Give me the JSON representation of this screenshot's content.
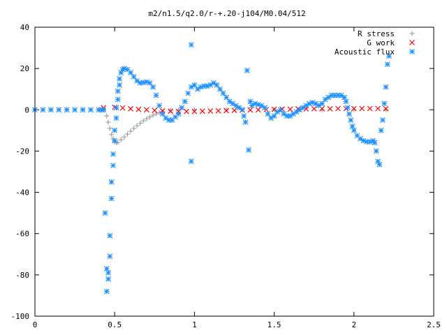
{
  "chart_data": {
    "type": "scatter",
    "title": "m2/n1.5/q2.0/r-+.20-j104/M0.04/512",
    "xlabel": "",
    "ylabel": "",
    "xlim": [
      0,
      2.5
    ],
    "ylim": [
      -100,
      40
    ],
    "x_ticks": [
      0,
      0.5,
      1,
      1.5,
      2,
      2.5
    ],
    "y_ticks": [
      -100,
      -80,
      -60,
      -40,
      -20,
      0,
      20,
      40
    ],
    "x_tick_labels": [
      "0",
      "0.5",
      "1",
      "1.5",
      "2",
      "2.5"
    ],
    "y_tick_labels": [
      "-100",
      "-80",
      "-60",
      "-40",
      "-20",
      "0",
      "20",
      "40"
    ],
    "grid": false,
    "legend_position": "top-right",
    "series": [
      {
        "name": "R stress",
        "marker": "plus",
        "color": "#a0a0a0",
        "points": [
          [
            0.0,
            0
          ],
          [
            0.1,
            0
          ],
          [
            0.2,
            0
          ],
          [
            0.3,
            0
          ],
          [
            0.4,
            0
          ],
          [
            0.43,
            0
          ],
          [
            0.45,
            -3
          ],
          [
            0.46,
            -6
          ],
          [
            0.47,
            -9
          ],
          [
            0.48,
            -12
          ],
          [
            0.49,
            -14
          ],
          [
            0.5,
            -15.5
          ],
          [
            0.51,
            -16
          ],
          [
            0.52,
            -15.8
          ],
          [
            0.54,
            -14.5
          ],
          [
            0.56,
            -13.2
          ],
          [
            0.58,
            -11.8
          ],
          [
            0.6,
            -10.4
          ],
          [
            0.62,
            -9
          ],
          [
            0.64,
            -7.7
          ],
          [
            0.66,
            -6.5
          ],
          [
            0.68,
            -5.4
          ],
          [
            0.7,
            -4.4
          ],
          [
            0.72,
            -3.5
          ],
          [
            0.74,
            -2.7
          ],
          [
            0.76,
            -2
          ],
          [
            0.78,
            -1.4
          ],
          [
            0.8,
            -0.9
          ],
          [
            0.85,
            -0.4
          ],
          [
            0.9,
            -0.1
          ],
          [
            1.0,
            0
          ],
          [
            1.2,
            0
          ],
          [
            1.5,
            0
          ],
          [
            1.8,
            0
          ],
          [
            2.0,
            0
          ],
          [
            2.2,
            0
          ]
        ]
      },
      {
        "name": "G work",
        "marker": "cross",
        "color": "#ff0000",
        "points": [
          [
            0.43,
            1
          ],
          [
            0.5,
            1.2
          ],
          [
            0.55,
            0.9
          ],
          [
            0.6,
            0.5
          ],
          [
            0.65,
            0.2
          ],
          [
            0.7,
            0
          ],
          [
            0.75,
            -0.3
          ],
          [
            0.8,
            -0.5
          ],
          [
            0.85,
            -0.7
          ],
          [
            0.9,
            -0.8
          ],
          [
            0.95,
            -0.8
          ],
          [
            1.0,
            -0.8
          ],
          [
            1.05,
            -0.7
          ],
          [
            1.1,
            -0.6
          ],
          [
            1.15,
            -0.5
          ],
          [
            1.2,
            -0.4
          ],
          [
            1.25,
            -0.3
          ],
          [
            1.3,
            -0.2
          ],
          [
            1.35,
            -0.1
          ],
          [
            1.4,
            0
          ],
          [
            1.45,
            0.1
          ],
          [
            1.5,
            0.2
          ],
          [
            1.55,
            0.3
          ],
          [
            1.6,
            0.3
          ],
          [
            1.65,
            0.4
          ],
          [
            1.7,
            0.4
          ],
          [
            1.75,
            0.5
          ],
          [
            1.8,
            0.5
          ],
          [
            1.85,
            0.5
          ],
          [
            1.9,
            0.6
          ],
          [
            1.95,
            0.6
          ],
          [
            2.0,
            0.6
          ],
          [
            2.05,
            0.6
          ],
          [
            2.1,
            0.6
          ],
          [
            2.15,
            0.6
          ],
          [
            2.2,
            0.5
          ]
        ]
      },
      {
        "name": "Acoustic flux",
        "marker": "star",
        "color": "#1e90ff",
        "points": [
          [
            0.0,
            0
          ],
          [
            0.05,
            0
          ],
          [
            0.1,
            0
          ],
          [
            0.15,
            0
          ],
          [
            0.2,
            0
          ],
          [
            0.25,
            0
          ],
          [
            0.3,
            0
          ],
          [
            0.35,
            0
          ],
          [
            0.4,
            0
          ],
          [
            0.42,
            0
          ],
          [
            0.43,
            0
          ],
          [
            0.44,
            -50
          ],
          [
            0.45,
            -77
          ],
          [
            0.45,
            -88
          ],
          [
            0.46,
            -79
          ],
          [
            0.46,
            -82
          ],
          [
            0.47,
            -71
          ],
          [
            0.47,
            -61
          ],
          [
            0.48,
            -43
          ],
          [
            0.48,
            -35
          ],
          [
            0.49,
            -27
          ],
          [
            0.49,
            -21.5
          ],
          [
            0.5,
            -15
          ],
          [
            0.5,
            -10
          ],
          [
            0.51,
            -4
          ],
          [
            0.51,
            1
          ],
          [
            0.52,
            5
          ],
          [
            0.52,
            9
          ],
          [
            0.53,
            12
          ],
          [
            0.53,
            15
          ],
          [
            0.54,
            18
          ],
          [
            0.55,
            19.5
          ],
          [
            0.56,
            20
          ],
          [
            0.58,
            19.5
          ],
          [
            0.6,
            18
          ],
          [
            0.62,
            16
          ],
          [
            0.64,
            14
          ],
          [
            0.66,
            13
          ],
          [
            0.68,
            13.2
          ],
          [
            0.7,
            13.5
          ],
          [
            0.72,
            13
          ],
          [
            0.74,
            11
          ],
          [
            0.76,
            7
          ],
          [
            0.78,
            2
          ],
          [
            0.8,
            -2
          ],
          [
            0.82,
            -4
          ],
          [
            0.84,
            -5
          ],
          [
            0.86,
            -5
          ],
          [
            0.88,
            -3.5
          ],
          [
            0.9,
            -2
          ],
          [
            0.92,
            1
          ],
          [
            0.94,
            4
          ],
          [
            0.96,
            8
          ],
          [
            0.98,
            11
          ],
          [
            0.98,
            31.5
          ],
          [
            0.98,
            -25
          ],
          [
            1.0,
            12
          ],
          [
            1.02,
            10
          ],
          [
            1.04,
            11
          ],
          [
            1.06,
            11.5
          ],
          [
            1.08,
            11.5
          ],
          [
            1.1,
            12
          ],
          [
            1.12,
            13
          ],
          [
            1.14,
            12
          ],
          [
            1.16,
            10
          ],
          [
            1.18,
            8
          ],
          [
            1.2,
            6
          ],
          [
            1.22,
            4
          ],
          [
            1.24,
            3
          ],
          [
            1.26,
            2
          ],
          [
            1.28,
            1
          ],
          [
            1.3,
            0
          ],
          [
            1.31,
            -3
          ],
          [
            1.32,
            -6
          ],
          [
            1.33,
            19
          ],
          [
            1.34,
            -19.5
          ],
          [
            1.35,
            4
          ],
          [
            1.36,
            2
          ],
          [
            1.38,
            3
          ],
          [
            1.4,
            2.5
          ],
          [
            1.42,
            2
          ],
          [
            1.44,
            1
          ],
          [
            1.46,
            -2
          ],
          [
            1.48,
            -4
          ],
          [
            1.5,
            -3
          ],
          [
            1.52,
            -1
          ],
          [
            1.54,
            0
          ],
          [
            1.56,
            -2
          ],
          [
            1.58,
            -3
          ],
          [
            1.6,
            -3
          ],
          [
            1.62,
            -2
          ],
          [
            1.64,
            -1
          ],
          [
            1.66,
            0
          ],
          [
            1.68,
            1
          ],
          [
            1.7,
            2
          ],
          [
            1.72,
            3
          ],
          [
            1.74,
            3.5
          ],
          [
            1.76,
            3
          ],
          [
            1.78,
            2
          ],
          [
            1.8,
            3
          ],
          [
            1.82,
            5
          ],
          [
            1.84,
            6
          ],
          [
            1.86,
            7
          ],
          [
            1.88,
            7
          ],
          [
            1.9,
            7
          ],
          [
            1.92,
            7
          ],
          [
            1.94,
            6
          ],
          [
            1.95,
            4
          ],
          [
            1.96,
            1
          ],
          [
            1.97,
            -2
          ],
          [
            1.98,
            -5
          ],
          [
            1.99,
            -8
          ],
          [
            2.0,
            -10
          ],
          [
            2.02,
            -12.5
          ],
          [
            2.04,
            -14
          ],
          [
            2.06,
            -15
          ],
          [
            2.08,
            -15.5
          ],
          [
            2.1,
            -15.5
          ],
          [
            2.12,
            -15
          ],
          [
            2.13,
            -16
          ],
          [
            2.14,
            -20
          ],
          [
            2.15,
            -25
          ],
          [
            2.16,
            -26.5
          ],
          [
            2.17,
            -10
          ],
          [
            2.18,
            -5
          ],
          [
            2.19,
            3
          ],
          [
            2.2,
            11
          ],
          [
            2.21,
            22
          ],
          [
            2.22,
            26
          ]
        ]
      }
    ]
  }
}
